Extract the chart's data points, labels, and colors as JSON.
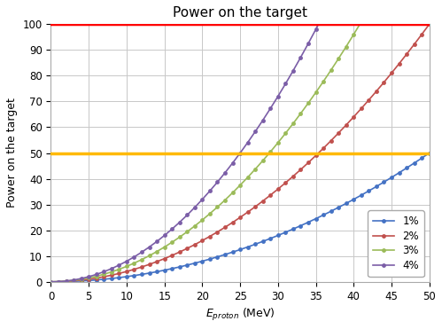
{
  "title": "Power on the target",
  "xlabel": "E",
  "xlabel_sub": "proton",
  "xlabel_unit": " (MeV)",
  "ylabel": "Power on the target",
  "xlim": [
    0,
    50
  ],
  "ylim": [
    0,
    100
  ],
  "xticks": [
    0,
    5,
    10,
    15,
    20,
    25,
    30,
    35,
    40,
    45,
    50
  ],
  "yticks": [
    0,
    10,
    20,
    30,
    40,
    50,
    60,
    70,
    80,
    90,
    100
  ],
  "hline_red": 100,
  "hline_yellow": 50,
  "hline_red_color": "#FF0000",
  "hline_yellow_color": "#FFB900",
  "hline_linewidth": 2.5,
  "series": [
    {
      "label": "1%",
      "coeff": 0.02,
      "color": "#4472C4"
    },
    {
      "label": "2%",
      "coeff": 0.04,
      "color": "#C0504D"
    },
    {
      "label": "3%",
      "coeff": 0.06,
      "color": "#9BBB59"
    },
    {
      "label": "4%",
      "coeff": 0.08,
      "color": "#7B5EA7"
    }
  ],
  "marker": "o",
  "markersize": 3.5,
  "linewidth": 1.2,
  "n_points": 501,
  "marker_every": 10,
  "background_color": "#FFFFFF",
  "grid_color": "#C8C8C8",
  "title_fontsize": 11,
  "label_fontsize": 9,
  "tick_fontsize": 8.5,
  "legend_fontsize": 8.5
}
